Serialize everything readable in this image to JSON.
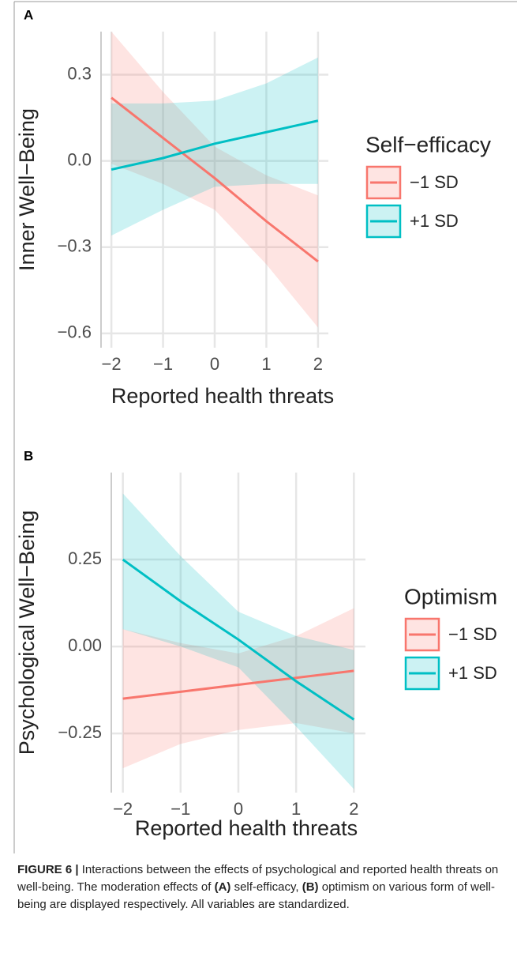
{
  "chart_data": [
    {
      "type": "line",
      "panel_label": "A",
      "ylabel": "Inner Well−Being",
      "xlabel": "Reported health threats",
      "legend_title": "Self−efficacy",
      "x": [
        -2,
        -1,
        0,
        1,
        2
      ],
      "xlim": [
        -2.2,
        2.2
      ],
      "xticks": [
        {
          "value": -2,
          "label": "−2"
        },
        {
          "value": -1,
          "label": "−1"
        },
        0,
        1,
        2
      ],
      "ylim": [
        -0.65,
        0.45
      ],
      "yticks": [
        0.3,
        {
          "value": 0,
          "label": "0.0"
        },
        {
          "value": -0.3,
          "label": "−0.3"
        },
        {
          "value": -0.6,
          "label": "−0.6"
        }
      ],
      "grid": true,
      "series": [
        {
          "name": "−1 SD",
          "color": "#F8766D",
          "values": [
            0.22,
            0.08,
            -0.06,
            -0.21,
            -0.35
          ],
          "lower": [
            -0.01,
            -0.08,
            -0.17,
            -0.36,
            -0.58
          ],
          "upper": [
            0.45,
            0.24,
            0.05,
            -0.05,
            -0.12
          ]
        },
        {
          "name": "+1 SD",
          "color": "#00BFC4",
          "values": [
            -0.03,
            0.01,
            0.06,
            0.1,
            0.14
          ],
          "lower": [
            -0.26,
            -0.17,
            -0.09,
            -0.08,
            -0.08
          ],
          "upper": [
            0.2,
            0.2,
            0.21,
            0.27,
            0.36
          ]
        }
      ]
    },
    {
      "type": "line",
      "panel_label": "B",
      "ylabel": "Psychological Well−Being",
      "xlabel": "Reported health threats",
      "legend_title": "Optimism",
      "x": [
        -2,
        -1,
        0,
        1,
        2
      ],
      "xlim": [
        -2.2,
        2.2
      ],
      "xticks": [
        {
          "value": -2,
          "label": "−2"
        },
        {
          "value": -1,
          "label": "−1"
        },
        0,
        1,
        2
      ],
      "ylim": [
        -0.42,
        0.5
      ],
      "yticks": [
        0.25,
        {
          "value": 0,
          "label": "0.00"
        },
        {
          "value": -0.25,
          "label": "−0.25"
        }
      ],
      "grid": true,
      "series": [
        {
          "name": "−1 SD",
          "color": "#F8766D",
          "values": [
            -0.15,
            -0.13,
            -0.11,
            -0.09,
            -0.07
          ],
          "lower": [
            -0.35,
            -0.28,
            -0.24,
            -0.22,
            -0.25
          ],
          "upper": [
            0.05,
            0.01,
            -0.02,
            0.03,
            0.11
          ]
        },
        {
          "name": "+1 SD",
          "color": "#00BFC4",
          "values": [
            0.25,
            0.13,
            0.02,
            -0.1,
            -0.21
          ],
          "lower": [
            0.05,
            0.0,
            -0.06,
            -0.23,
            -0.41
          ],
          "upper": [
            0.44,
            0.26,
            0.1,
            0.03,
            -0.01
          ]
        }
      ]
    }
  ],
  "caption": {
    "label": "FIGURE 6 |",
    "text1": " Interactions between the effects of psychological and reported health threats on well-being. The moderation effects of ",
    "a": "(A)",
    "text2": " self-efficacy, ",
    "b": "(B)",
    "text3": " optimism on various form of well-being are displayed respectively. All variables are standardized."
  }
}
